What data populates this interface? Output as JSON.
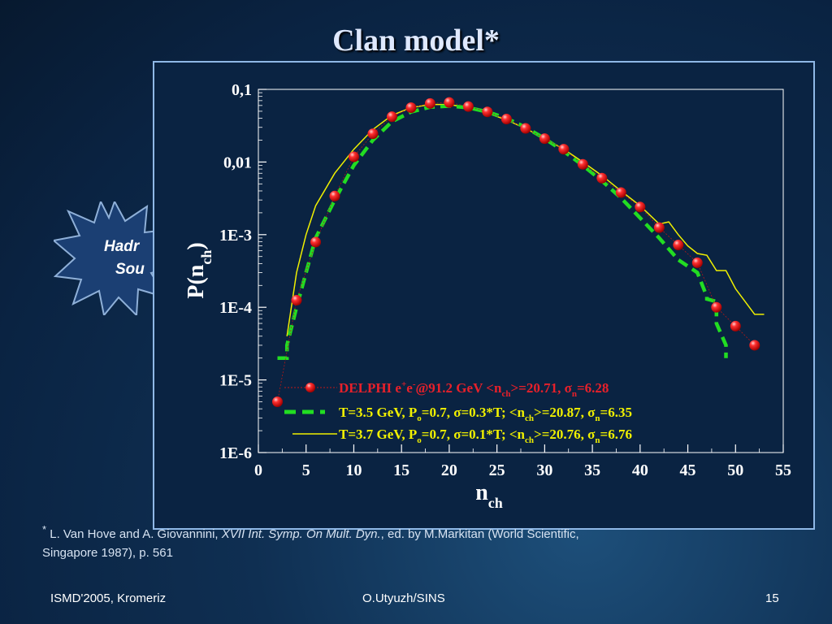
{
  "slide": {
    "title": "Clan model*",
    "burst_line1": "Hadr",
    "burst_line2": "Sou"
  },
  "footnote": {
    "marker": "*",
    "text_a": " L. Van Hove and A. Giovannini, ",
    "text_b": "XVII Int. Symp. On Mult. Dyn.",
    "text_c": ", ed. by M.Markitan (World Scientific,",
    "text_d": "Singapore 1987), p. 561"
  },
  "footer": {
    "left": "ISMD'2005, Kromeriz",
    "center": "O.Utyuzh/SINS",
    "right": "15"
  },
  "colors": {
    "delphi": "#e8202a",
    "t35": "#22dd22",
    "t37": "#f0f000",
    "frame": "#8fb8e6"
  },
  "chart_data": {
    "type": "scatter",
    "xlabel_main": "n",
    "xlabel_sub": "ch",
    "ylabel_main": "P(n",
    "ylabel_sub": "ch",
    "ylabel_close": ")",
    "xlim": [
      0,
      55
    ],
    "ylim": [
      1e-06,
      0.1
    ],
    "y_scale": "log",
    "x_ticks": [
      0,
      5,
      10,
      15,
      20,
      25,
      30,
      35,
      40,
      45,
      50,
      55
    ],
    "x_tick_labels": [
      "0",
      "5",
      "10",
      "15",
      "20",
      "25",
      "30",
      "35",
      "40",
      "45",
      "50",
      "55"
    ],
    "y_ticks": [
      0.1,
      0.01,
      0.001,
      0.0001,
      1e-05,
      1e-06
    ],
    "y_tick_labels": [
      "0,1",
      "0,01",
      "1E-3",
      "1E-4",
      "1E-5",
      "1E-6"
    ],
    "legend_placement": "bottom-right",
    "series": [
      {
        "name": "DELPHI",
        "legend": {
          "p1": "DELPHI e",
          "p1sup": "+",
          "p2": "e",
          "p2sup": "-",
          "p3": "@91.2 GeV ",
          "p4": "<n",
          "p4sub": "ch",
          "p5": ">=20.71, σ",
          "p5sub": "n",
          "p6": "=6.28"
        },
        "style": "markers",
        "x": [
          2,
          4,
          6,
          8,
          10,
          12,
          14,
          16,
          18,
          20,
          22,
          24,
          26,
          28,
          30,
          32,
          34,
          36,
          38,
          40,
          42,
          44,
          46,
          48,
          50,
          52
        ],
        "y": [
          5e-06,
          0.000125,
          0.00079,
          0.0034,
          0.0118,
          0.0245,
          0.042,
          0.056,
          0.064,
          0.066,
          0.058,
          0.049,
          0.039,
          0.029,
          0.021,
          0.015,
          0.0093,
          0.006,
          0.0038,
          0.0024,
          0.00125,
          0.00072,
          0.00041,
          0.0001,
          5.5e-05,
          3e-05
        ]
      },
      {
        "name": "T=3.5 GeV",
        "legend": {
          "p1": "T=3.5 GeV, P",
          "p1sub": "o",
          "p2": "=0.7, σ=0.3*T; <n",
          "p2sub": "ch",
          "p3": ">=20.87, σ",
          "p3sub": "n",
          "p4": "=6.35"
        },
        "style": "dashed",
        "x": [
          2,
          3,
          3,
          4,
          5,
          6,
          8,
          10,
          12,
          14,
          16,
          18,
          20,
          22,
          24,
          26,
          28,
          30,
          32,
          34,
          36,
          38,
          40,
          42,
          44,
          46,
          47,
          47,
          48,
          48,
          49,
          49
        ],
        "y": [
          2e-05,
          2e-05,
          3e-05,
          0.0001,
          0.0003,
          0.0009,
          0.003,
          0.009,
          0.02,
          0.036,
          0.049,
          0.057,
          0.059,
          0.056,
          0.049,
          0.04,
          0.03,
          0.021,
          0.014,
          0.009,
          0.0055,
          0.0032,
          0.0017,
          0.0009,
          0.00045,
          0.0003,
          0.00014,
          0.00013,
          0.00012,
          6e-05,
          3e-05,
          2e-05
        ]
      },
      {
        "name": "T=3.7 GeV",
        "legend": {
          "p1": "T=3.7 GeV, P",
          "p1sub": "o",
          "p2": "=0.7, σ=0.1*T; <n",
          "p2sub": "ch",
          "p3": ">=20.76, σ",
          "p3sub": "n",
          "p4": "=6.76"
        },
        "style": "solid",
        "x": [
          3,
          4,
          5,
          6,
          8,
          10,
          12,
          14,
          16,
          18,
          20,
          22,
          24,
          26,
          28,
          30,
          32,
          34,
          36,
          38,
          40,
          42,
          43,
          44,
          45,
          46,
          47,
          48,
          49,
          50,
          51,
          52,
          53
        ],
        "y": [
          4e-05,
          0.0003,
          0.001,
          0.0025,
          0.007,
          0.015,
          0.028,
          0.044,
          0.056,
          0.062,
          0.062,
          0.056,
          0.047,
          0.038,
          0.029,
          0.021,
          0.015,
          0.01,
          0.0065,
          0.004,
          0.0025,
          0.0014,
          0.0015,
          0.001,
          0.0007,
          0.00055,
          0.00052,
          0.00032,
          0.00032,
          0.00018,
          0.00012,
          8e-05,
          8e-05
        ]
      }
    ]
  }
}
